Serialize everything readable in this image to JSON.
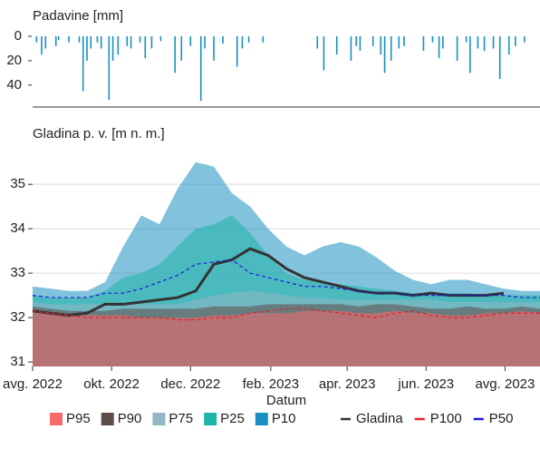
{
  "chart_data": [
    {
      "type": "bar",
      "title": "Padavine [mm]",
      "color": "#1a8fc1",
      "inverted": true,
      "x": [
        3,
        7,
        10,
        18,
        20,
        28,
        36,
        39,
        42,
        45,
        50,
        53,
        59,
        62,
        66,
        73,
        76,
        83,
        87,
        92,
        99,
        110,
        115,
        122,
        130,
        133,
        140,
        147,
        158,
        162,
        167,
        178,
        220,
        225,
        235,
        246,
        250,
        253,
        263,
        269,
        272,
        277,
        283,
        287,
        302,
        309,
        314,
        317,
        328,
        335,
        338,
        344,
        349,
        356,
        361,
        368,
        373,
        380
      ],
      "values": [
        5,
        15,
        10,
        8,
        3,
        5,
        5,
        45,
        20,
        10,
        5,
        10,
        52,
        20,
        15,
        8,
        10,
        5,
        18,
        10,
        4,
        30,
        20,
        8,
        53,
        10,
        20,
        6,
        25,
        10,
        5,
        5,
        10,
        28,
        15,
        20,
        8,
        12,
        8,
        15,
        30,
        20,
        10,
        8,
        12,
        5,
        18,
        10,
        20,
        5,
        30,
        10,
        12,
        10,
        35,
        15,
        8,
        5
      ],
      "xlim": [
        0,
        392
      ],
      "ylim": [
        0,
        58
      ],
      "yticks": [
        0,
        20,
        40
      ]
    },
    {
      "type": "area",
      "y_label": "Gladina p. v. [m n. m.]",
      "x_label": "Datum",
      "grid": true,
      "x": [
        0,
        14,
        28,
        42,
        56,
        70,
        84,
        98,
        112,
        126,
        140,
        154,
        168,
        182,
        196,
        210,
        224,
        238,
        252,
        266,
        280,
        294,
        308,
        322,
        336,
        350,
        364,
        378,
        392
      ],
      "xlim": [
        0,
        392
      ],
      "xticks": [
        {
          "value": 0,
          "label": "avg. 2022"
        },
        {
          "value": 61,
          "label": "okt. 2022"
        },
        {
          "value": 122,
          "label": "dec. 2022"
        },
        {
          "value": 184,
          "label": "feb. 2023"
        },
        {
          "value": 243,
          "label": "apr. 2023"
        },
        {
          "value": 304,
          "label": "jun. 2023"
        },
        {
          "value": 365,
          "label": "avg. 2023"
        }
      ],
      "ylim": [
        30.9,
        35.8
      ],
      "yticks": [
        31,
        32,
        33,
        34,
        35
      ],
      "series": [
        {
          "name": "P95",
          "style": "area",
          "color": "#f8696b",
          "values": [
            32.15,
            32.1,
            32.05,
            32.05,
            32.05,
            32.05,
            32.0,
            32.0,
            32.0,
            32.0,
            32.05,
            32.05,
            32.1,
            32.1,
            32.1,
            32.15,
            32.15,
            32.15,
            32.1,
            32.1,
            32.15,
            32.1,
            32.1,
            32.05,
            32.05,
            32.1,
            32.1,
            32.15,
            32.1
          ]
        },
        {
          "name": "P90",
          "style": "area",
          "color": "#5e4b47",
          "values": [
            32.25,
            32.2,
            32.15,
            32.15,
            32.15,
            32.2,
            32.2,
            32.2,
            32.2,
            32.2,
            32.25,
            32.25,
            32.25,
            32.3,
            32.3,
            32.3,
            32.3,
            32.3,
            32.25,
            32.3,
            32.3,
            32.25,
            32.2,
            32.2,
            32.25,
            32.2,
            32.2,
            32.25,
            32.2
          ]
        },
        {
          "name": "P75",
          "style": "area",
          "color": "#93b7c4",
          "values": [
            32.35,
            32.3,
            32.3,
            32.3,
            32.3,
            32.3,
            32.3,
            32.3,
            32.3,
            32.4,
            32.5,
            32.55,
            32.6,
            32.55,
            32.5,
            32.45,
            32.45,
            32.4,
            32.4,
            32.4,
            32.4,
            32.4,
            32.4,
            32.35,
            32.35,
            32.35,
            32.35,
            32.35,
            32.35
          ]
        },
        {
          "name": "P25",
          "style": "area",
          "color": "#1fb5a6",
          "values": [
            32.5,
            32.45,
            32.45,
            32.45,
            32.6,
            32.9,
            33.0,
            33.2,
            33.6,
            34.0,
            34.1,
            34.3,
            33.9,
            33.4,
            33.0,
            32.85,
            32.8,
            32.75,
            32.7,
            32.65,
            32.6,
            32.55,
            32.55,
            32.55,
            32.55,
            32.5,
            32.5,
            32.5,
            32.5
          ]
        },
        {
          "name": "P10",
          "style": "area",
          "color": "#1a8fc1",
          "values": [
            32.7,
            32.65,
            32.6,
            32.6,
            32.8,
            33.6,
            34.3,
            34.1,
            34.9,
            35.5,
            35.4,
            34.8,
            34.5,
            34.0,
            33.6,
            33.4,
            33.6,
            33.7,
            33.6,
            33.35,
            33.05,
            32.85,
            32.75,
            32.85,
            32.85,
            32.75,
            32.65,
            32.6,
            32.6
          ]
        },
        {
          "name": "Gladina",
          "style": "line",
          "color": "#333333",
          "values": [
            32.15,
            32.1,
            32.05,
            32.1,
            32.3,
            32.3,
            32.35,
            32.4,
            32.45,
            32.6,
            33.2,
            33.3,
            33.55,
            33.4,
            33.1,
            32.9,
            32.8,
            32.7,
            32.6,
            32.55,
            32.55,
            32.5,
            32.55,
            32.5,
            32.5,
            32.5,
            32.55,
            null,
            null
          ]
        },
        {
          "name": "P100",
          "style": "dashed",
          "color": "#e8202a",
          "values": [
            32.15,
            32.1,
            32.05,
            32.0,
            32.0,
            32.0,
            32.0,
            32.0,
            31.95,
            31.95,
            32.0,
            32.0,
            32.1,
            32.15,
            32.2,
            32.2,
            32.15,
            32.1,
            32.05,
            32.0,
            32.1,
            32.15,
            32.05,
            32.0,
            32.0,
            32.05,
            32.1,
            32.1,
            32.1
          ]
        },
        {
          "name": "P50",
          "style": "dashed",
          "color": "#1a1adb",
          "values": [
            32.5,
            32.45,
            32.45,
            32.45,
            32.55,
            32.55,
            32.65,
            32.8,
            32.95,
            33.2,
            33.25,
            33.3,
            33.0,
            32.9,
            32.8,
            32.7,
            32.7,
            32.65,
            32.6,
            32.55,
            32.55,
            32.5,
            32.5,
            32.5,
            32.5,
            32.5,
            32.5,
            32.45,
            32.45
          ]
        }
      ]
    }
  ]
}
